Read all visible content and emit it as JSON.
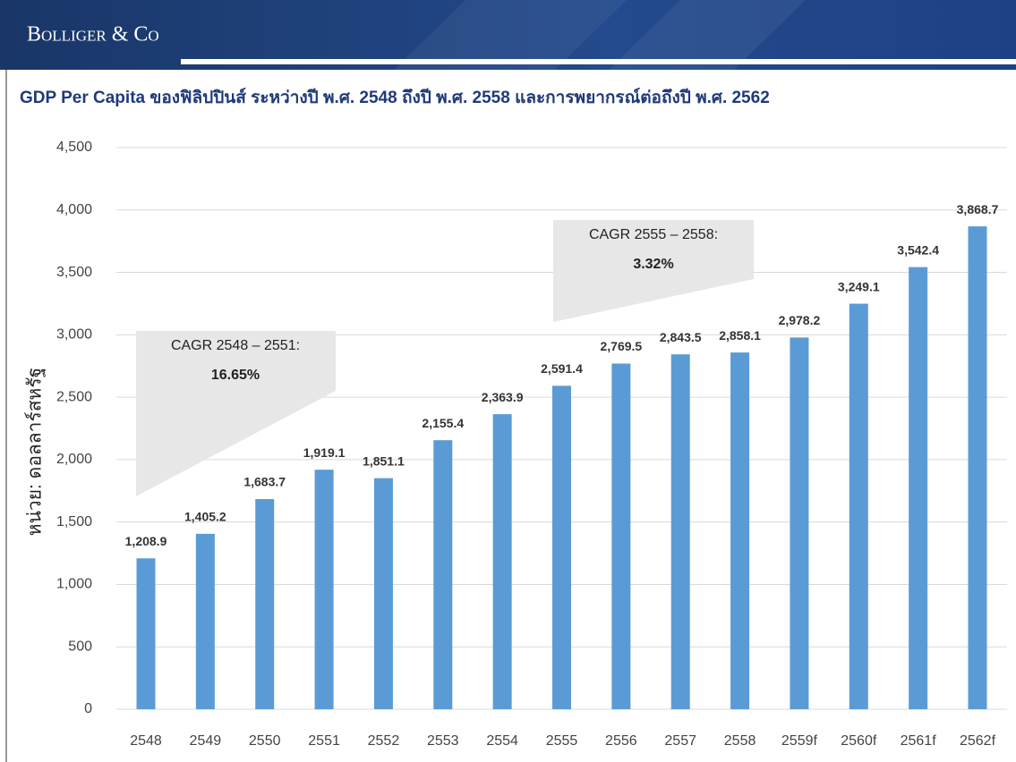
{
  "header": {
    "brand": "Bolliger & Co"
  },
  "chart_data": {
    "type": "bar",
    "title": "GDP Per Capita ของฟิลิปปินส์ ระหว่างปี พ.ศ. 2548 ถึงปี พ.ศ. 2558 และการพยากรณ์ต่อถึงปี พ.ศ. 2562",
    "y_label": "หน่วย: ดอลลาร์สหรัฐ",
    "categories": [
      "2548",
      "2549",
      "2550",
      "2551",
      "2552",
      "2553",
      "2554",
      "2555",
      "2556",
      "2557",
      "2558",
      "2559f",
      "2560f",
      "2561f",
      "2562f"
    ],
    "values": [
      1208.9,
      1405.2,
      1683.7,
      1919.1,
      1851.1,
      2155.4,
      2363.9,
      2591.4,
      2769.5,
      2843.5,
      2858.1,
      2978.2,
      3249.1,
      3542.4,
      3868.7
    ],
    "value_labels": [
      "1,208.9",
      "1,405.2",
      "1,683.7",
      "1,919.1",
      "1,851.1",
      "2,155.4",
      "2,363.9",
      "2,591.4",
      "2,769.5",
      "2,843.5",
      "2,858.1",
      "2,978.2",
      "3,249.1",
      "3,542.4",
      "3,868.7"
    ],
    "color": "#5b9bd5",
    "ylim": [
      0,
      4500
    ],
    "yticks": [
      0,
      500,
      {
        "value": 1000,
        "label": "1,000"
      },
      {
        "value": 1500,
        "label": "1,500"
      },
      {
        "value": 2000,
        "label": "2,000"
      },
      {
        "value": 2500,
        "label": "2,500"
      },
      {
        "value": 3000,
        "label": "3,000"
      },
      {
        "value": 3500,
        "label": "3,500"
      },
      {
        "value": 4000,
        "label": "4,000"
      },
      {
        "value": 4500,
        "label": "4,500"
      }
    ],
    "grid": true,
    "annotations": [
      {
        "label": "CAGR 2548 – 2551:",
        "value": "16.65%"
      },
      {
        "label": "CAGR 2555 – 2558:",
        "value": "3.32%"
      }
    ]
  }
}
